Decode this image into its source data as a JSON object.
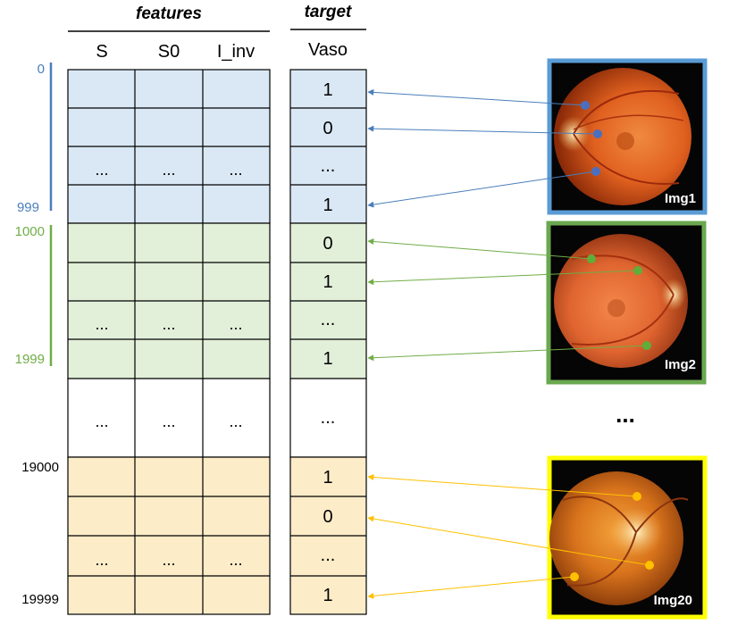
{
  "headers": {
    "features": "features",
    "target": "target"
  },
  "columns": {
    "s": "S",
    "s0": "S0",
    "i_inv": "I_inv",
    "vaso": "Vaso"
  },
  "ellipsis": "...",
  "groups": [
    {
      "color": "#dae8f5",
      "line_color": "#4a7ebb",
      "start_label": "0",
      "end_label": "999",
      "targets": [
        "1",
        "0",
        "...",
        "1"
      ],
      "image_label": "Img1",
      "border": "#5b9bd5"
    },
    {
      "color": "#e2efd9",
      "line_color": "#70ad47",
      "start_label": "1000",
      "end_label": "1999",
      "targets": [
        "0",
        "1",
        "...",
        "1"
      ],
      "image_label": "Img2",
      "border": "#6aa84f"
    },
    {
      "color": "#fdecc8",
      "line_color": "#ffc000",
      "start_label": "19000",
      "end_label": "19999",
      "targets": [
        "1",
        "0",
        "...",
        "1"
      ],
      "image_label": "Img20",
      "border": "#ffff00"
    }
  ],
  "middle_target": "...",
  "images_gap": "..."
}
